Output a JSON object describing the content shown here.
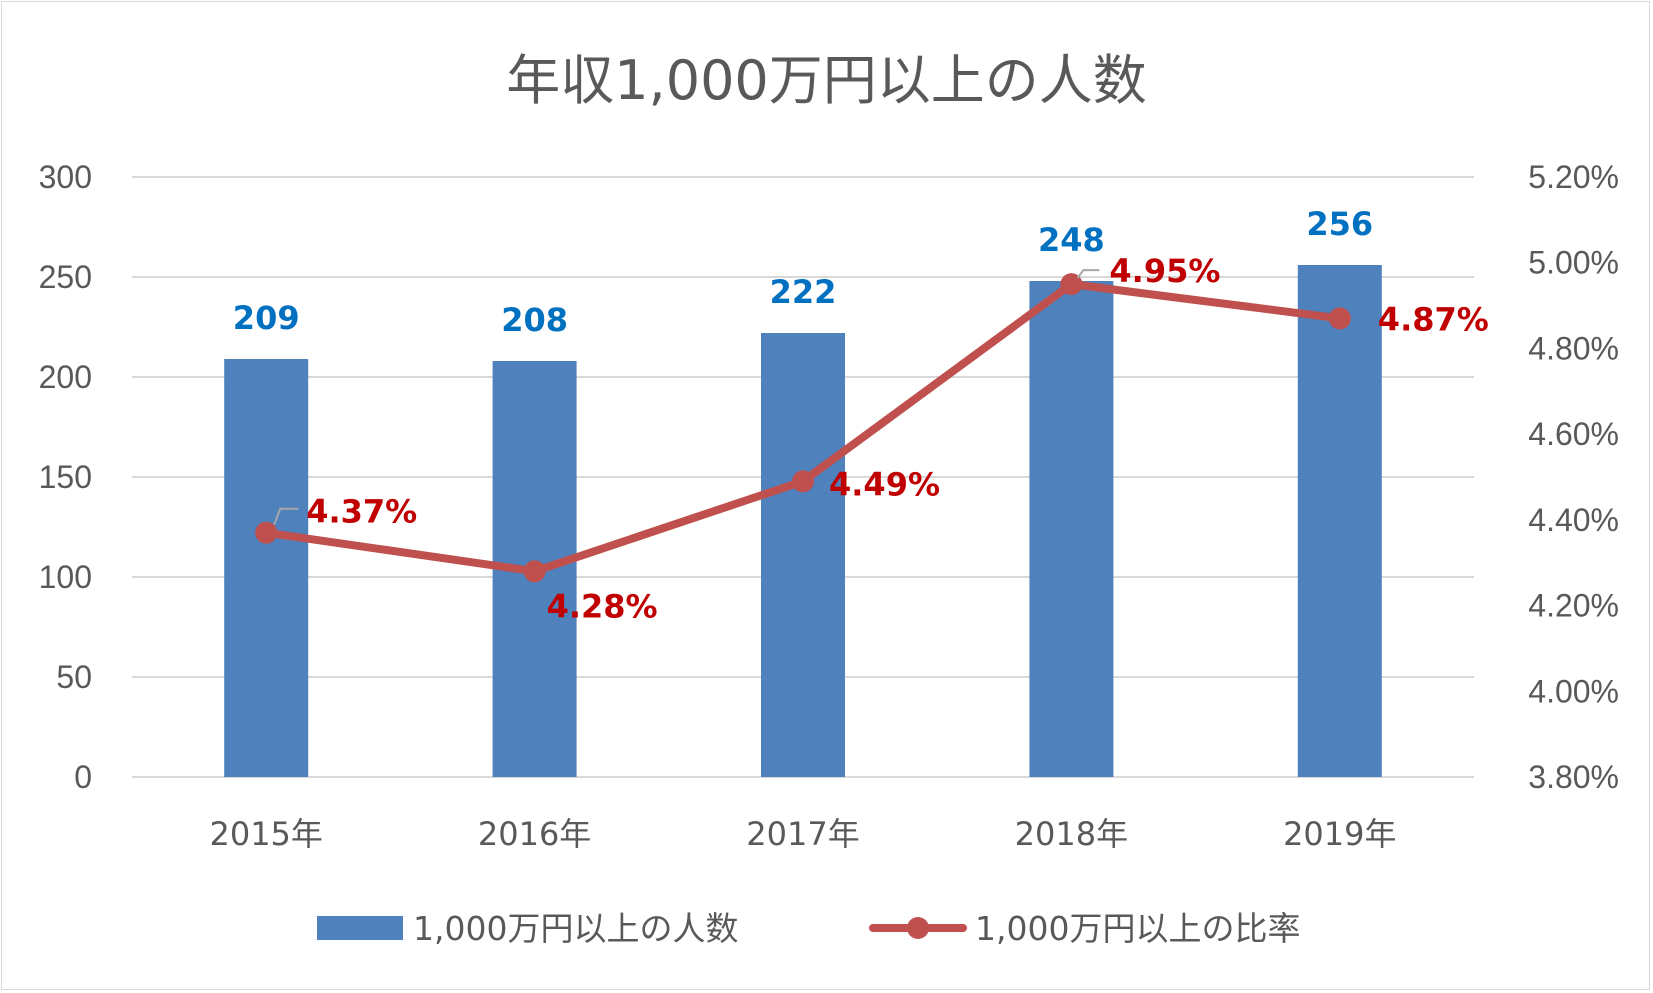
{
  "colors": {
    "bar": "#4f81bd",
    "line": "#c0504d",
    "bar_label": "#0070c0",
    "line_label": "#c00000",
    "grid": "#d9d9d9",
    "text": "#595959"
  },
  "chart_data": {
    "type": "bar",
    "title": "年収1,000万円以上の人数",
    "categories": [
      "2015年",
      "2016年",
      "2017年",
      "2018年",
      "2019年"
    ],
    "series": [
      {
        "name": "1,000万円以上の人数",
        "type": "bar",
        "axis": "left",
        "values": [
          209,
          208,
          222,
          248,
          256
        ],
        "labels": [
          "209",
          "208",
          "222",
          "248",
          "256"
        ]
      },
      {
        "name": "1,000万円以上の比率",
        "type": "line",
        "axis": "right",
        "values": [
          4.37,
          4.28,
          4.49,
          4.95,
          4.87
        ],
        "labels": [
          "4.37%",
          "4.28%",
          "4.49%",
          "4.95%",
          "4.87%"
        ]
      }
    ],
    "y_left": {
      "lim": [
        0,
        300
      ],
      "ticks": [
        0,
        50,
        100,
        150,
        200,
        250,
        300
      ],
      "tick_labels": [
        "0",
        "50",
        "100",
        "150",
        "200",
        "250",
        "300"
      ]
    },
    "y_right": {
      "lim": [
        3.8,
        5.2
      ],
      "ticks": [
        3.8,
        4.0,
        4.2,
        4.4,
        4.6,
        4.8,
        5.0,
        5.2
      ],
      "tick_labels": [
        "3.80%",
        "4.00%",
        "4.20%",
        "4.40%",
        "4.60%",
        "4.80%",
        "5.00%",
        "5.20%"
      ]
    },
    "grid": true,
    "legend": "bottom"
  }
}
